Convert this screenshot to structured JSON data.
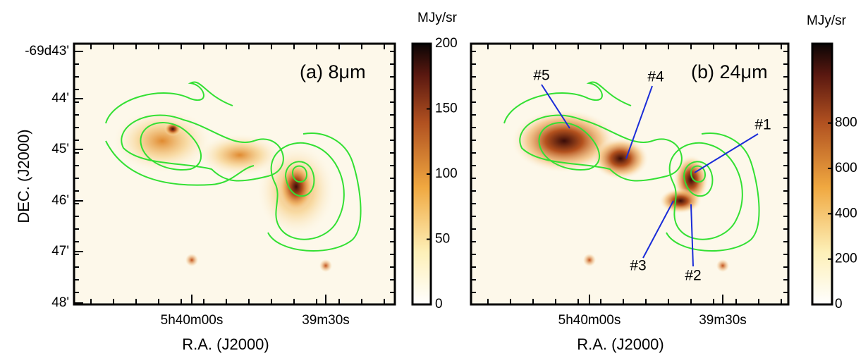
{
  "panels": [
    {
      "label": "(a) 8μm",
      "y_axis_label": "DEC. (J2000)",
      "yticks": [
        "-69d43'",
        "44'",
        "45'",
        "46'",
        "47'",
        "48'"
      ],
      "x_axis_label": "R.A. (J2000)",
      "xticks": [
        "5h40m00s",
        "39m30s"
      ],
      "colorbar": {
        "unit": "MJy/sr",
        "lim": [
          0,
          200
        ],
        "ticks": [
          0,
          50,
          100,
          150,
          200
        ]
      },
      "annotations": []
    },
    {
      "label": "(b) 24μm",
      "x_axis_label": "R.A. (J2000)",
      "xticks": [
        "5h40m00s",
        "39m30s"
      ],
      "colorbar": {
        "unit": "MJy/sr",
        "lim": [
          0,
          1150
        ],
        "ticks": [
          0,
          200,
          400,
          600,
          800
        ]
      },
      "annotations": [
        "#1",
        "#2",
        "#3",
        "#4",
        "#5"
      ]
    }
  ]
}
